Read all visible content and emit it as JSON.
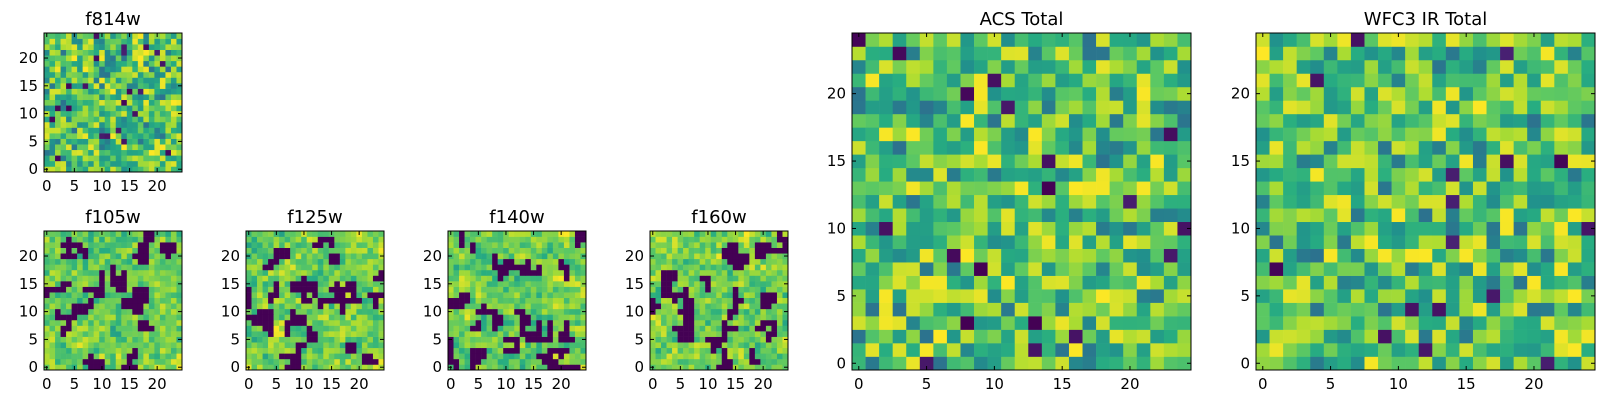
{
  "figure": {
    "description_free": true
  },
  "chart_data": [
    {
      "type": "heatmap",
      "title": "f814w",
      "grid_size": 25,
      "xticks": [
        0,
        5,
        10,
        15,
        20
      ],
      "yticks": [
        0,
        5,
        10,
        15,
        20
      ],
      "xlim": [
        -0.5,
        24.5
      ],
      "ylim": [
        -0.5,
        24.5
      ],
      "colormap": "viridis",
      "texture": "pixel noise",
      "masked_fraction": 0.03
    },
    {
      "type": "heatmap",
      "title": "f105w",
      "grid_size": 25,
      "xticks": [
        0,
        5,
        10,
        15,
        20
      ],
      "yticks": [
        0,
        5,
        10,
        15,
        20
      ],
      "xlim": [
        -0.5,
        24.5
      ],
      "ylim": [
        -0.5,
        24.5
      ],
      "colormap": "viridis",
      "texture": "blocky with dark masked regions",
      "masked_fraction": 0.18
    },
    {
      "type": "heatmap",
      "title": "f125w",
      "grid_size": 25,
      "xticks": [
        0,
        5,
        10,
        15,
        20
      ],
      "yticks": [
        0,
        5,
        10,
        15,
        20
      ],
      "xlim": [
        -0.5,
        24.5
      ],
      "ylim": [
        -0.5,
        24.5
      ],
      "colormap": "viridis",
      "texture": "blocky with dark masked regions",
      "masked_fraction": 0.2
    },
    {
      "type": "heatmap",
      "title": "f140w",
      "grid_size": 25,
      "xticks": [
        0,
        5,
        10,
        15,
        20
      ],
      "yticks": [
        0,
        5,
        10,
        15,
        20
      ],
      "xlim": [
        -0.5,
        24.5
      ],
      "ylim": [
        -0.5,
        24.5
      ],
      "colormap": "viridis",
      "texture": "blocky with dark masked regions",
      "masked_fraction": 0.2
    },
    {
      "type": "heatmap",
      "title": "f160w",
      "grid_size": 25,
      "xticks": [
        0,
        5,
        10,
        15,
        20
      ],
      "yticks": [
        0,
        5,
        10,
        15,
        20
      ],
      "xlim": [
        -0.5,
        24.5
      ],
      "ylim": [
        -0.5,
        24.5
      ],
      "colormap": "viridis",
      "texture": "blocky with dark masked regions",
      "masked_fraction": 0.2
    },
    {
      "type": "heatmap",
      "title": "ACS Total",
      "grid_size": 25,
      "xticks": [
        0,
        5,
        10,
        15,
        20
      ],
      "yticks": [
        0,
        5,
        10,
        15,
        20
      ],
      "xlim": [
        -0.5,
        24.5
      ],
      "ylim": [
        -0.5,
        24.5
      ],
      "colormap": "viridis",
      "texture": "pixel noise",
      "masked_fraction": 0.025
    },
    {
      "type": "heatmap",
      "title": "WFC3 IR Total",
      "grid_size": 25,
      "xticks": [
        0,
        5,
        10,
        15,
        20
      ],
      "yticks": [
        0,
        5,
        10,
        15,
        20
      ],
      "xlim": [
        -0.5,
        24.5
      ],
      "ylim": [
        -0.5,
        24.5
      ],
      "colormap": "viridis",
      "texture": "pixel noise",
      "masked_fraction": 0.02
    }
  ],
  "colors": {
    "masked": "#440154",
    "frame": "#000000"
  }
}
